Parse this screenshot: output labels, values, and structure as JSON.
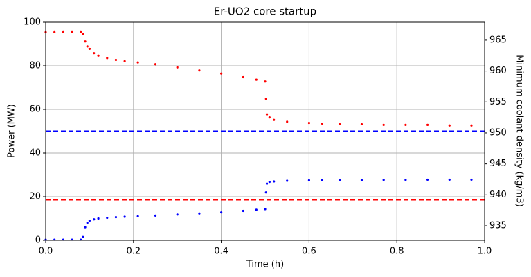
{
  "chart_data": {
    "type": "scatter",
    "title": "Er-UO2 core startup",
    "xlabel": "Time (h)",
    "ylabel": "Power (MW)",
    "y2label": "Minimum coolant density (kg/m3)",
    "x": [
      0,
      0.02,
      0.04,
      0.06,
      0.08,
      0.085,
      0.09,
      0.095,
      0.1,
      0.11,
      0.12,
      0.14,
      0.16,
      0.18,
      0.21,
      0.25,
      0.3,
      0.35,
      0.4,
      0.45,
      0.48,
      0.5,
      0.502,
      0.504,
      0.51,
      0.52,
      0.55,
      0.6,
      0.63,
      0.67,
      0.72,
      0.77,
      0.82,
      0.87,
      0.92,
      0.97
    ],
    "series": [
      {
        "color": "#0000ff",
        "axis": "y",
        "values": [
          0.3,
          0.3,
          0.3,
          0.3,
          0.3,
          1.5,
          6,
          8,
          9,
          9.6,
          10,
          10.3,
          10.6,
          10.8,
          11,
          11.3,
          11.8,
          12.3,
          12.8,
          13.5,
          14,
          14.3,
          22,
          26,
          26.8,
          27,
          27.3,
          27.5,
          27.6,
          27.6,
          27.6,
          27.7,
          27.7,
          27.8,
          27.8,
          27.8
        ]
      },
      {
        "color": "#ff0000",
        "axis": "y2",
        "values": [
          966.3,
          966.3,
          966.3,
          966.3,
          966.3,
          966.0,
          964.8,
          964.0,
          963.6,
          962.9,
          962.5,
          962.1,
          961.8,
          961.6,
          961.4,
          961.1,
          960.6,
          960.1,
          959.6,
          959.0,
          958.6,
          958.3,
          955.5,
          953.0,
          952.5,
          952.1,
          951.8,
          951.6,
          951.5,
          951.4,
          951.4,
          951.3,
          951.3,
          951.3,
          951.2,
          951.2
        ]
      }
    ],
    "hlines": [
      {
        "value": 50,
        "color": "#0000ff",
        "axis": "y"
      },
      {
        "value": 939.2,
        "color": "#ff0000",
        "axis": "y2"
      }
    ],
    "xlim": [
      0,
      1
    ],
    "xticks": [
      {
        "value": 0,
        "label": "0.0"
      },
      {
        "value": 0.2,
        "label": "0.2"
      },
      {
        "value": 0.4,
        "label": "0.4"
      },
      {
        "value": 0.6,
        "label": "0.6"
      },
      {
        "value": 0.8,
        "label": "0.8"
      },
      {
        "value": 1,
        "label": "1.0"
      }
    ],
    "ylim": [
      0,
      100
    ],
    "yticks": [
      0,
      20,
      40,
      60,
      80,
      100
    ],
    "y2lim": [
      932.65,
      967.9
    ],
    "y2ticks": [
      935,
      940,
      945,
      950,
      955,
      960,
      965
    ],
    "grid": true
  }
}
